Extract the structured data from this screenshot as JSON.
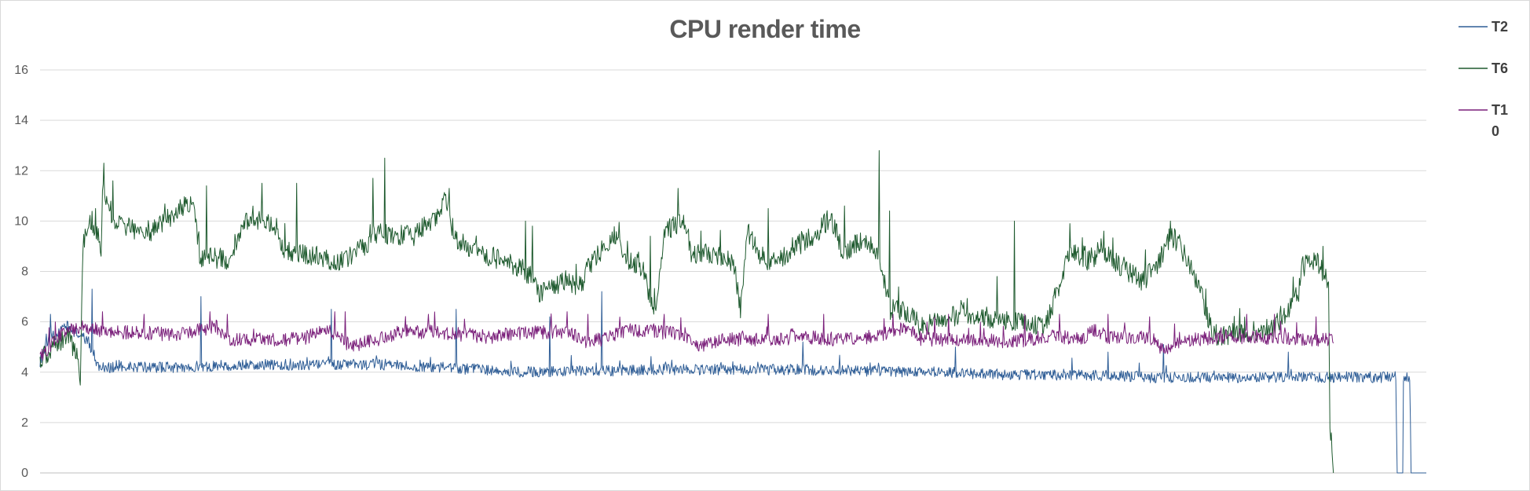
{
  "chart_data": {
    "type": "line",
    "title": "CPU render time",
    "xlabel": "",
    "ylabel": "",
    "ylim": [
      0,
      16
    ],
    "yticks": [
      0,
      2,
      4,
      6,
      8,
      10,
      12,
      14,
      16
    ],
    "x_count": 2000,
    "grid": true,
    "legend_position": "right",
    "series": [
      {
        "name": "T2",
        "color": "#2e5d96",
        "keyframes": [
          [
            0,
            4.4
          ],
          [
            12,
            5.3
          ],
          [
            40,
            5.8
          ],
          [
            70,
            5.2
          ],
          [
            85,
            4.2
          ],
          [
            200,
            4.2
          ],
          [
            300,
            4.3
          ],
          [
            500,
            4.3
          ],
          [
            700,
            4.0
          ],
          [
            900,
            4.1
          ],
          [
            1100,
            4.1
          ],
          [
            1300,
            4.0
          ],
          [
            1400,
            3.9
          ],
          [
            1500,
            3.9
          ],
          [
            1600,
            3.8
          ],
          [
            1750,
            3.8
          ],
          [
            1850,
            3.8
          ],
          [
            1950,
            3.8
          ],
          [
            1955,
            3.8
          ],
          [
            1957,
            0
          ],
          [
            1965,
            0
          ],
          [
            1966,
            3.8
          ],
          [
            1975,
            3.8
          ],
          [
            1977,
            0
          ],
          [
            1999,
            0
          ]
        ],
        "spikes": [
          [
            15,
            6.3
          ],
          [
            75,
            7.3
          ],
          [
            232,
            7.0
          ],
          [
            420,
            6.5
          ],
          [
            600,
            6.5
          ],
          [
            735,
            6.2
          ],
          [
            810,
            7.2
          ],
          [
            1100,
            5.2
          ],
          [
            1320,
            5.0
          ],
          [
            1540,
            4.8
          ],
          [
            1620,
            5.1
          ],
          [
            1800,
            4.8
          ]
        ]
      },
      {
        "name": "T6",
        "color": "#1e5a2e",
        "keyframes": [
          [
            0,
            4.5
          ],
          [
            40,
            5.5
          ],
          [
            55,
            4.5
          ],
          [
            58,
            3.5
          ],
          [
            62,
            9.2
          ],
          [
            75,
            10.0
          ],
          [
            88,
            9.0
          ],
          [
            90,
            11.3
          ],
          [
            110,
            9.8
          ],
          [
            160,
            9.6
          ],
          [
            220,
            10.8
          ],
          [
            230,
            8.6
          ],
          [
            270,
            8.5
          ],
          [
            300,
            10.1
          ],
          [
            340,
            9.8
          ],
          [
            350,
            8.8
          ],
          [
            400,
            8.6
          ],
          [
            430,
            8.3
          ],
          [
            470,
            9.0
          ],
          [
            480,
            9.5
          ],
          [
            540,
            9.4
          ],
          [
            570,
            10.2
          ],
          [
            585,
            10.8
          ],
          [
            600,
            9.2
          ],
          [
            650,
            8.6
          ],
          [
            690,
            8.2
          ],
          [
            710,
            7.8
          ],
          [
            720,
            7.2
          ],
          [
            760,
            7.6
          ],
          [
            780,
            7.4
          ],
          [
            790,
            8.2
          ],
          [
            830,
            9.5
          ],
          [
            850,
            8.4
          ],
          [
            870,
            8.2
          ],
          [
            880,
            6.7
          ],
          [
            890,
            6.6
          ],
          [
            900,
            9.6
          ],
          [
            930,
            10.0
          ],
          [
            940,
            8.6
          ],
          [
            960,
            8.8
          ],
          [
            1000,
            8.4
          ],
          [
            1010,
            6.4
          ],
          [
            1020,
            9.6
          ],
          [
            1040,
            8.6
          ],
          [
            1060,
            8.2
          ],
          [
            1080,
            8.8
          ],
          [
            1120,
            9.5
          ],
          [
            1140,
            10.2
          ],
          [
            1160,
            8.6
          ],
          [
            1180,
            9.2
          ],
          [
            1200,
            9.0
          ],
          [
            1210,
            8.6
          ],
          [
            1225,
            6.5
          ],
          [
            1250,
            6.4
          ],
          [
            1270,
            5.8
          ],
          [
            1300,
            6.0
          ],
          [
            1330,
            6.4
          ],
          [
            1360,
            6.2
          ],
          [
            1400,
            6.0
          ],
          [
            1430,
            5.9
          ],
          [
            1450,
            5.8
          ],
          [
            1485,
            8.8
          ],
          [
            1510,
            8.4
          ],
          [
            1530,
            8.8
          ],
          [
            1560,
            8.2
          ],
          [
            1590,
            7.6
          ],
          [
            1610,
            8.2
          ],
          [
            1630,
            9.4
          ],
          [
            1640,
            9.2
          ],
          [
            1660,
            8.2
          ],
          [
            1680,
            6.6
          ],
          [
            1690,
            5.6
          ],
          [
            1700,
            5.4
          ],
          [
            1730,
            5.6
          ],
          [
            1760,
            5.6
          ],
          [
            1790,
            6.0
          ],
          [
            1815,
            7.2
          ],
          [
            1820,
            8.2
          ],
          [
            1840,
            8.4
          ],
          [
            1850,
            8.0
          ],
          [
            1858,
            7.6
          ],
          [
            1860,
            2.0
          ],
          [
            1865,
            0
          ]
        ],
        "spikes": [
          [
            92,
            12.3
          ],
          [
            80,
            10.5
          ],
          [
            105,
            11.6
          ],
          [
            240,
            11.4
          ],
          [
            320,
            11.5
          ],
          [
            370,
            11.5
          ],
          [
            480,
            11.7
          ],
          [
            497,
            12.5
          ],
          [
            590,
            11.3
          ],
          [
            580,
            10.9
          ],
          [
            700,
            10.0
          ],
          [
            710,
            9.8
          ],
          [
            880,
            9.4
          ],
          [
            920,
            11.3
          ],
          [
            1050,
            10.5
          ],
          [
            1160,
            10.6
          ],
          [
            1210,
            12.8
          ],
          [
            1225,
            10.4
          ],
          [
            1380,
            7.8
          ],
          [
            1405,
            10.0
          ],
          [
            1485,
            9.9
          ],
          [
            1530,
            9.3
          ],
          [
            1630,
            10.0
          ],
          [
            1850,
            9.0
          ]
        ]
      },
      {
        "name": "T10",
        "color": "#7a1f7a",
        "keyframes": [
          [
            0,
            4.6
          ],
          [
            30,
            5.5
          ],
          [
            60,
            5.8
          ],
          [
            100,
            5.6
          ],
          [
            200,
            5.5
          ],
          [
            255,
            5.8
          ],
          [
            265,
            5.3
          ],
          [
            380,
            5.3
          ],
          [
            410,
            5.8
          ],
          [
            450,
            5.0
          ],
          [
            460,
            5.1
          ],
          [
            500,
            5.4
          ],
          [
            520,
            5.6
          ],
          [
            560,
            5.6
          ],
          [
            610,
            5.5
          ],
          [
            650,
            5.4
          ],
          [
            700,
            5.6
          ],
          [
            760,
            5.6
          ],
          [
            790,
            5.2
          ],
          [
            810,
            5.3
          ],
          [
            850,
            5.7
          ],
          [
            890,
            5.6
          ],
          [
            930,
            5.5
          ],
          [
            950,
            5.0
          ],
          [
            980,
            5.3
          ],
          [
            1050,
            5.3
          ],
          [
            1100,
            5.4
          ],
          [
            1150,
            5.3
          ],
          [
            1200,
            5.4
          ],
          [
            1250,
            5.8
          ],
          [
            1270,
            5.3
          ],
          [
            1350,
            5.3
          ],
          [
            1400,
            5.2
          ],
          [
            1450,
            5.4
          ],
          [
            1480,
            5.4
          ],
          [
            1500,
            5.3
          ],
          [
            1520,
            5.7
          ],
          [
            1540,
            5.4
          ],
          [
            1600,
            5.4
          ],
          [
            1620,
            4.9
          ],
          [
            1640,
            5.2
          ],
          [
            1700,
            5.4
          ],
          [
            1760,
            5.4
          ],
          [
            1800,
            5.3
          ],
          [
            1860,
            5.3
          ],
          [
            1865,
            5.2
          ]
        ],
        "spikes": [
          [
            90,
            6.4
          ],
          [
            150,
            6.3
          ],
          [
            245,
            6.4
          ],
          [
            270,
            6.3
          ],
          [
            425,
            6.4
          ],
          [
            440,
            6.4
          ],
          [
            560,
            6.3
          ],
          [
            760,
            6.4
          ],
          [
            790,
            6.3
          ],
          [
            900,
            6.3
          ],
          [
            1050,
            6.3
          ],
          [
            1130,
            6.3
          ],
          [
            1230,
            6.3
          ],
          [
            1290,
            6.2
          ],
          [
            1310,
            6.3
          ],
          [
            1420,
            6.3
          ],
          [
            1470,
            6.3
          ],
          [
            1540,
            6.3
          ],
          [
            1600,
            6.2
          ],
          [
            1740,
            6.3
          ],
          [
            1780,
            6.3
          ],
          [
            1840,
            6.2
          ]
        ]
      }
    ]
  }
}
